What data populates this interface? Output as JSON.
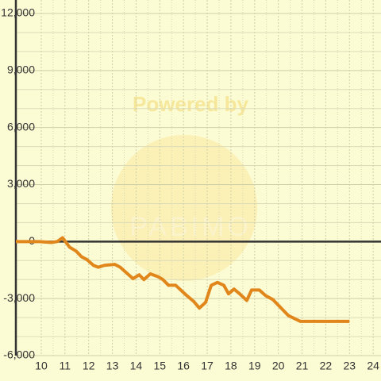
{
  "chart_data": {
    "type": "line",
    "watermark": [
      "Powered by",
      "PABIMO"
    ],
    "series": [
      {
        "color": "#e0861a",
        "x": [
          8.93,
          9.93,
          10.43,
          10.67,
          10.9,
          11.2,
          11.47,
          11.7,
          11.93,
          12.2,
          12.4,
          12.67,
          13.1,
          13.33,
          13.6,
          13.87,
          14.13,
          14.33,
          14.6,
          14.93,
          15.13,
          15.37,
          15.67,
          16.1,
          16.43,
          16.67,
          16.93,
          17.17,
          17.43,
          17.7,
          17.9,
          18.13,
          18.37,
          18.67,
          18.87,
          19.2,
          19.47,
          19.77,
          20,
          20.43,
          20.93,
          21.43,
          23
        ],
        "values": [
          0,
          0,
          -50,
          0,
          200,
          -300,
          -500,
          -800,
          -950,
          -1250,
          -1350,
          -1250,
          -1200,
          -1350,
          -1650,
          -1950,
          -1750,
          -2000,
          -1700,
          -1850,
          -2000,
          -2300,
          -2300,
          -2800,
          -3150,
          -3500,
          -3200,
          -2300,
          -2150,
          -2300,
          -2750,
          -2500,
          -2750,
          -3100,
          -2550,
          -2550,
          -2850,
          -3050,
          -3350,
          -3900,
          -4200,
          -4200,
          -4200
        ]
      }
    ],
    "xlim": [
      8.93,
      24.33
    ],
    "xticks": [
      10,
      11,
      12,
      13,
      14,
      15,
      16,
      17,
      18,
      19,
      20,
      21,
      22,
      23,
      24
    ],
    "ylim": [
      -6000,
      12000
    ],
    "yticks": [
      {
        "value": 12000,
        "label": "12,000"
      },
      {
        "value": 9000,
        "label": "9,000"
      },
      {
        "value": 6000,
        "label": "6,000"
      },
      {
        "value": 3000,
        "label": "3,000"
      },
      0,
      {
        "value": -3000,
        "label": "-3,000"
      },
      {
        "value": -6000,
        "label": "-6,000"
      }
    ],
    "grid": true
  }
}
